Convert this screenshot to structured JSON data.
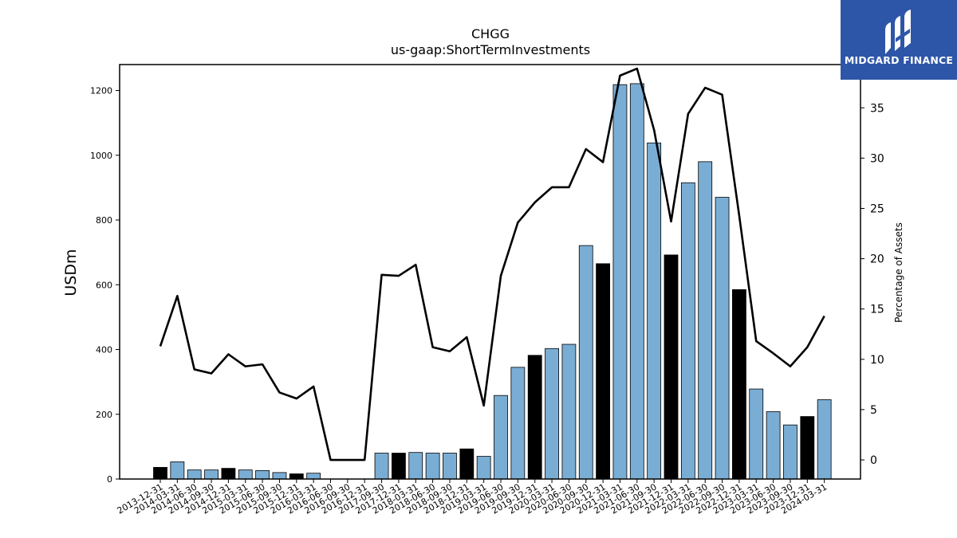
{
  "chart_data": {
    "type": "bar",
    "title": "CHGG",
    "subtitle": "us-gaap:ShortTermInvestments",
    "ylabel": "USDm",
    "y2label": "Percentage of Assets",
    "ylim": [
      0,
      1280
    ],
    "y2lim": [
      -1.9,
      39.3
    ],
    "yticks": [
      0,
      200,
      400,
      600,
      800,
      1000,
      1200
    ],
    "y2ticks": [
      0,
      5,
      10,
      15,
      20,
      25,
      30,
      35
    ],
    "categories": [
      "2013-12-31",
      "2014-03-31",
      "2014-06-30",
      "2014-09-30",
      "2014-12-31",
      "2015-03-31",
      "2015-06-30",
      "2015-09-30",
      "2015-12-31",
      "2016-03-31",
      "2016-06-30",
      "2016-09-30",
      "2016-12-31",
      "2017-09-30",
      "2017-12-31",
      "2018-03-31",
      "2018-06-30",
      "2018-09-30",
      "2018-12-31",
      "2019-03-31",
      "2019-06-30",
      "2019-09-30",
      "2019-12-31",
      "2020-03-31",
      "2020-06-30",
      "2020-09-30",
      "2020-12-31",
      "2021-03-31",
      "2021-06-30",
      "2021-09-30",
      "2021-12-31",
      "2022-03-31",
      "2022-06-30",
      "2022-09-30",
      "2022-12-31",
      "2023-03-31",
      "2023-06-30",
      "2023-09-30",
      "2023-12-31",
      "2024-03-31"
    ],
    "series": [
      {
        "type": "bar",
        "values": [
          36,
          53,
          28,
          28,
          33,
          28,
          26,
          20,
          16,
          18,
          0,
          0,
          0,
          80,
          80,
          82,
          80,
          80,
          93,
          70,
          258,
          345,
          382,
          403,
          416,
          721,
          665,
          1218,
          1221,
          1038,
          692,
          915,
          980,
          870,
          585,
          278,
          208,
          167,
          193,
          245
        ],
        "annual_flags": [
          true,
          false,
          false,
          false,
          true,
          false,
          false,
          false,
          true,
          false,
          false,
          false,
          true,
          false,
          true,
          false,
          false,
          false,
          true,
          false,
          false,
          false,
          true,
          false,
          false,
          false,
          true,
          false,
          false,
          false,
          true,
          false,
          false,
          false,
          true,
          false,
          false,
          false,
          true,
          false
        ]
      },
      {
        "type": "line",
        "axis": "right",
        "values": [
          11.3,
          16.3,
          9.0,
          8.6,
          10.5,
          9.3,
          9.5,
          6.7,
          6.1,
          7.3,
          0.0,
          0.0,
          0.0,
          18.4,
          18.3,
          19.4,
          11.2,
          10.8,
          12.2,
          5.4,
          18.3,
          23.6,
          25.6,
          27.1,
          27.1,
          30.9,
          29.6,
          38.2,
          38.9,
          32.8,
          23.7,
          34.4,
          37.0,
          36.3,
          24.3,
          11.8,
          10.6,
          9.3,
          11.2,
          14.3
        ]
      }
    ],
    "colors": {
      "bar_quarter": "#7aadd4",
      "bar_annual": "#000000",
      "line": "#000000"
    },
    "grid": false
  },
  "logo": {
    "text": "MIDGARD FINANCE"
  }
}
